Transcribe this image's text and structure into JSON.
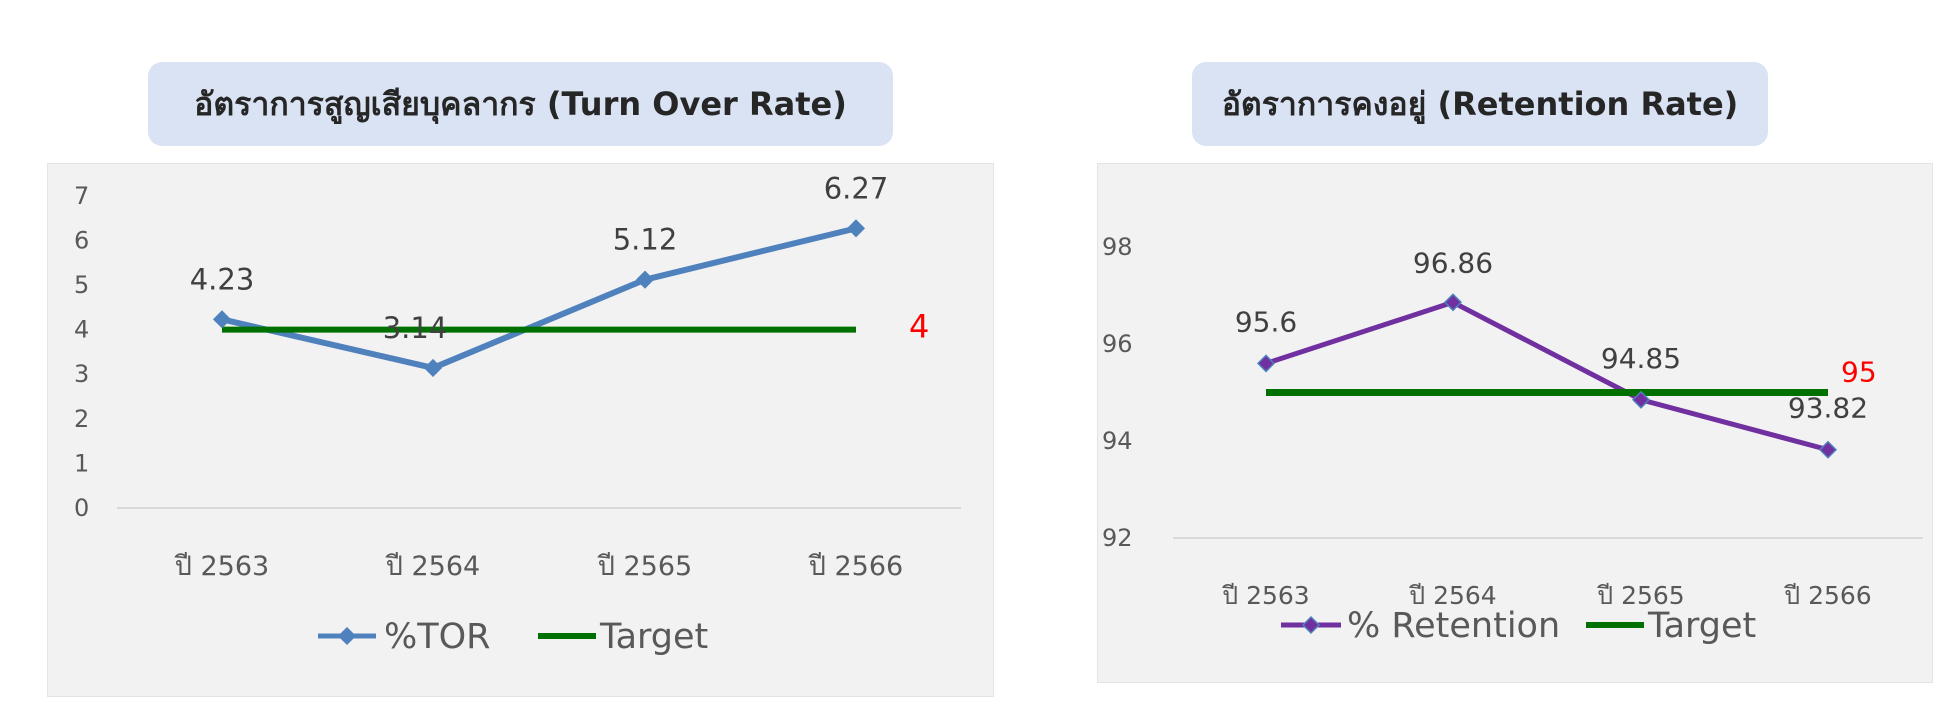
{
  "chart_data": [
    {
      "type": "line",
      "title": "อัตราการสูญเสียบุคลากร (Turn Over Rate)",
      "categories": [
        "ปี 2563",
        "ปี 2564",
        "ปี 2565",
        "ปี 2566"
      ],
      "series": [
        {
          "name": "%TOR",
          "values": [
            4.23,
            3.14,
            5.12,
            6.27
          ],
          "color": "#4f81bd",
          "marker": "diamond"
        },
        {
          "name": "Target",
          "values": [
            4,
            4,
            4,
            4
          ],
          "color": "#007000",
          "marker": "none"
        }
      ],
      "data_labels": [
        "4.23",
        "3.14",
        "5.12",
        "6.27"
      ],
      "target_label": "4",
      "target_label_color": "#ff0000",
      "yticks": [
        "0",
        "1",
        "2",
        "3",
        "4",
        "5",
        "6",
        "7"
      ],
      "ylim": [
        0,
        7
      ],
      "grid": false,
      "legend_position": "bottom"
    },
    {
      "type": "line",
      "title": "อัตราการคงอยู่ (Retention Rate)",
      "categories": [
        "ปี 2563",
        "ปี 2564",
        "ปี 2565",
        "ปี 2566"
      ],
      "series": [
        {
          "name": "% Retention",
          "values": [
            95.6,
            96.86,
            94.85,
            93.82
          ],
          "color": "#7030a0",
          "marker": "diamond"
        },
        {
          "name": "Target",
          "values": [
            95,
            95,
            95,
            95
          ],
          "color": "#007000",
          "marker": "none"
        }
      ],
      "data_labels": [
        "95.6",
        "96.86",
        "94.85",
        "93.82"
      ],
      "target_label": "95",
      "target_label_color": "#ff0000",
      "yticks": [
        "92",
        "94",
        "96",
        "98"
      ],
      "ylim": [
        92,
        99
      ],
      "grid": false,
      "legend_position": "bottom"
    }
  ]
}
